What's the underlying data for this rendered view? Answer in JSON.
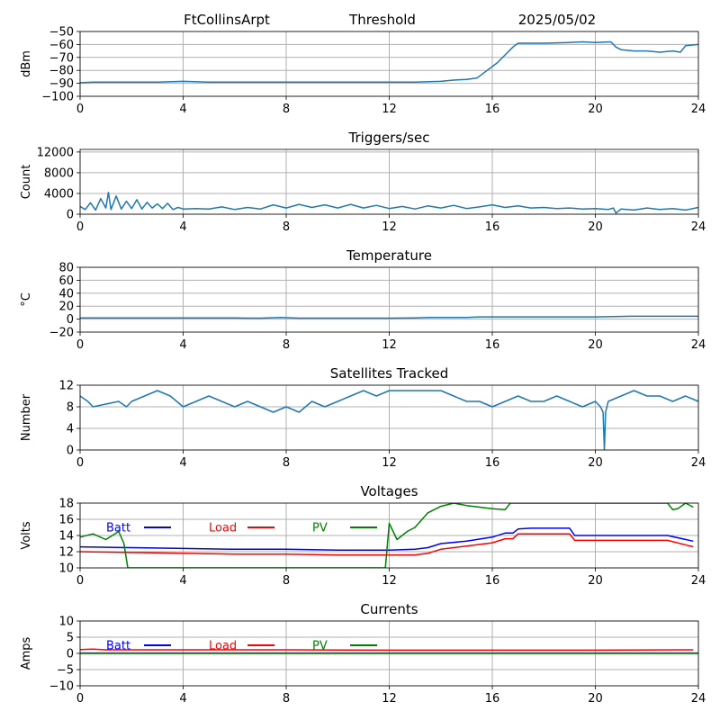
{
  "header": {
    "station": "FtCollinsArpt",
    "threshold": "Threshold",
    "date": "2025/05/02"
  },
  "colors": {
    "series": "#1f77b4",
    "batt": "#0000ff",
    "load": "#ff0000",
    "pv": "#008000",
    "grid": "#b0b0b0"
  },
  "chart_data": [
    {
      "id": "threshold",
      "type": "line",
      "title": "",
      "ylabel": "dBm",
      "xlim": [
        0,
        24
      ],
      "ylim": [
        -100,
        -50
      ],
      "xticks": [
        0,
        4,
        8,
        12,
        16,
        20,
        24
      ],
      "xtick_labels": [
        "0",
        "4",
        "8",
        "12",
        "16",
        "20",
        "24"
      ],
      "yticks": [
        -100,
        -90,
        -80,
        -70,
        -60,
        -50
      ],
      "ytick_labels": [
        "−100",
        "−90",
        "−80",
        "−70",
        "−60",
        "−50"
      ],
      "grid": true,
      "series": [
        {
          "color": "#1f77b4",
          "x": [
            0,
            0.5,
            1,
            2,
            3,
            4,
            5,
            6,
            7,
            8,
            9,
            10,
            11,
            12,
            13,
            14,
            14.5,
            15,
            15.4,
            15.8,
            16.2,
            16.6,
            16.8,
            17,
            17.5,
            18,
            19,
            19.5,
            20,
            20.6,
            20.8,
            21,
            21.5,
            22,
            22.5,
            23,
            23.3,
            23.5,
            24
          ],
          "y": [
            -89.5,
            -89,
            -89,
            -89,
            -89,
            -88.5,
            -89,
            -89,
            -89,
            -89,
            -89,
            -89,
            -89,
            -89,
            -89,
            -88.5,
            -87.5,
            -87,
            -86,
            -80,
            -74,
            -66,
            -62,
            -59,
            -59,
            -59,
            -58.5,
            -58,
            -58.5,
            -58,
            -62,
            -64,
            -65,
            -65,
            -66,
            -65,
            -66,
            -61,
            -60
          ]
        }
      ]
    },
    {
      "id": "triggers",
      "type": "line",
      "title": "Triggers/sec",
      "ylabel": "Count",
      "xlim": [
        0,
        24
      ],
      "ylim": [
        0,
        12500
      ],
      "xticks": [
        0,
        4,
        8,
        12,
        16,
        20,
        24
      ],
      "xtick_labels": [
        "0",
        "4",
        "8",
        "12",
        "16",
        "20",
        "24"
      ],
      "yticks": [
        0,
        4000,
        8000,
        12000
      ],
      "ytick_labels": [
        "0",
        "4000",
        "8000",
        "12000"
      ],
      "grid": true,
      "series": [
        {
          "color": "#1f77b4",
          "x": [
            0,
            0.2,
            0.4,
            0.6,
            0.8,
            1.0,
            1.1,
            1.2,
            1.4,
            1.6,
            1.8,
            2.0,
            2.2,
            2.4,
            2.6,
            2.8,
            3.0,
            3.2,
            3.4,
            3.6,
            3.8,
            4.0,
            4.5,
            5.0,
            5.5,
            6.0,
            6.5,
            7.0,
            7.5,
            8.0,
            8.5,
            9.0,
            9.5,
            10.0,
            10.5,
            11.0,
            11.5,
            12.0,
            12.5,
            13.0,
            13.5,
            14.0,
            14.5,
            15.0,
            15.5,
            16.0,
            16.5,
            17.0,
            17.5,
            18.0,
            18.5,
            19.0,
            19.5,
            20.0,
            20.5,
            20.7,
            20.8,
            21.0,
            21.5,
            22.0,
            22.5,
            23.0,
            23.5,
            24.0
          ],
          "y": [
            1500,
            900,
            2200,
            800,
            3000,
            1200,
            4200,
            900,
            3500,
            1000,
            2500,
            1100,
            2800,
            1000,
            2300,
            1200,
            2000,
            1100,
            2100,
            900,
            1300,
            1000,
            1100,
            1000,
            1400,
            900,
            1300,
            1000,
            1800,
            1200,
            1900,
            1300,
            1800,
            1200,
            1900,
            1200,
            1700,
            1100,
            1500,
            1000,
            1600,
            1200,
            1700,
            1100,
            1400,
            1800,
            1300,
            1600,
            1200,
            1300,
            1100,
            1200,
            1000,
            1100,
            900,
            1200,
            200,
            1000,
            800,
            1200,
            900,
            1100,
            800,
            1300
          ]
        }
      ]
    },
    {
      "id": "temperature",
      "type": "line",
      "title": "Temperature",
      "ylabel": "°C",
      "xlim": [
        0,
        24
      ],
      "ylim": [
        -20,
        80
      ],
      "xticks": [
        0,
        4,
        8,
        12,
        16,
        20,
        24
      ],
      "xtick_labels": [
        "0",
        "4",
        "8",
        "12",
        "16",
        "20",
        "24"
      ],
      "yticks": [
        -20,
        0,
        20,
        40,
        60,
        80
      ],
      "ytick_labels": [
        "−20",
        "0",
        "20",
        "40",
        "60",
        "80"
      ],
      "grid": true,
      "series": [
        {
          "color": "#1f77b4",
          "x": [
            0,
            2,
            4,
            6,
            6.5,
            7,
            7.8,
            8.5,
            10,
            12,
            13,
            13.5,
            15,
            15.5,
            18,
            20,
            21.4,
            22,
            24
          ],
          "y": [
            2,
            2,
            2,
            2,
            1.5,
            1.5,
            2.5,
            1.5,
            1.5,
            1.5,
            2,
            2.5,
            2.5,
            3.5,
            3.5,
            3.5,
            4.5,
            4.5,
            4.5
          ]
        }
      ]
    },
    {
      "id": "satellites",
      "type": "line",
      "title": "Satellites Tracked",
      "ylabel": "Number",
      "xlim": [
        0,
        24
      ],
      "ylim": [
        0,
        12
      ],
      "xticks": [
        0,
        4,
        8,
        12,
        16,
        20,
        24
      ],
      "xtick_labels": [
        "0",
        "4",
        "8",
        "12",
        "16",
        "20",
        "24"
      ],
      "yticks": [
        0,
        4,
        8,
        12
      ],
      "ytick_labels": [
        "0",
        "4",
        "8",
        "12"
      ],
      "grid": true,
      "series": [
        {
          "color": "#1f77b4",
          "x": [
            0,
            0.3,
            0.5,
            1.5,
            1.8,
            2.0,
            2.5,
            3.0,
            3.5,
            4.0,
            4.5,
            5.0,
            5.5,
            6.0,
            6.5,
            7.0,
            7.5,
            8.0,
            8.5,
            9.0,
            9.5,
            10.0,
            10.5,
            11.0,
            11.5,
            12.0,
            12.5,
            13.0,
            13.5,
            14.0,
            14.5,
            15.0,
            15.5,
            16.0,
            16.5,
            17.0,
            17.5,
            18.0,
            18.5,
            19.0,
            19.5,
            20.0,
            20.2,
            20.3,
            20.35,
            20.4,
            20.5,
            21.0,
            21.5,
            22.0,
            22.5,
            23.0,
            23.5,
            24.0
          ],
          "y": [
            10,
            9,
            8,
            9,
            8,
            9,
            10,
            11,
            10,
            8,
            9,
            10,
            9,
            8,
            9,
            8,
            7,
            8,
            7,
            9,
            8,
            9,
            10,
            11,
            10,
            11,
            11,
            11,
            11,
            11,
            10,
            9,
            9,
            8,
            9,
            10,
            9,
            9,
            10,
            9,
            8,
            9,
            8,
            7,
            0,
            7,
            9,
            10,
            11,
            10,
            10,
            9,
            10,
            9
          ]
        }
      ]
    },
    {
      "id": "voltages",
      "type": "line",
      "title": "Voltages",
      "ylabel": "Volts",
      "xlim": [
        0,
        24
      ],
      "ylim": [
        10,
        18
      ],
      "xticks": [
        0,
        4,
        8,
        12,
        16,
        20,
        24
      ],
      "xtick_labels": [
        "0",
        "4",
        "8",
        "12",
        "16",
        "20",
        "24"
      ],
      "yticks": [
        10,
        12,
        14,
        16,
        18
      ],
      "ytick_labels": [
        "10",
        "12",
        "14",
        "16",
        "18"
      ],
      "grid": true,
      "legend": "top-left",
      "series": [
        {
          "name": "Batt",
          "color": "#0000ff",
          "x": [
            0,
            2,
            4,
            6,
            8,
            10,
            12,
            13,
            13.5,
            14,
            15,
            16,
            16.5,
            16.8,
            17,
            17.5,
            18,
            19,
            19.2,
            20,
            22,
            22.8,
            23.8
          ],
          "y": [
            12.6,
            12.5,
            12.4,
            12.3,
            12.3,
            12.2,
            12.2,
            12.3,
            12.5,
            13.0,
            13.3,
            13.8,
            14.3,
            14.3,
            14.8,
            14.9,
            14.9,
            14.9,
            14.0,
            14.0,
            14.0,
            14.0,
            13.3
          ]
        },
        {
          "name": "Load",
          "color": "#ff0000",
          "x": [
            0,
            2,
            4,
            6,
            8,
            10,
            12,
            13,
            13.5,
            14,
            15,
            16,
            16.5,
            16.8,
            17,
            17.5,
            18,
            19,
            19.2,
            20,
            22,
            22.8,
            23.8
          ],
          "y": [
            12.0,
            11.9,
            11.8,
            11.7,
            11.7,
            11.6,
            11.6,
            11.6,
            11.8,
            12.3,
            12.7,
            13.1,
            13.6,
            13.6,
            14.2,
            14.2,
            14.2,
            14.2,
            13.4,
            13.4,
            13.4,
            13.4,
            12.6
          ]
        },
        {
          "name": "PV",
          "color": "#008000",
          "x": [
            0,
            0.5,
            1,
            1.5,
            1.7,
            1.85,
            11.85,
            12.0,
            12.3,
            12.7,
            13.0,
            13.5,
            14.0,
            14.5,
            15.0,
            15.5,
            16.0,
            16.5,
            16.7,
            22.8,
            23.0,
            23.2,
            23.5,
            23.8
          ],
          "y": [
            13.8,
            14.2,
            13.5,
            14.5,
            13.0,
            10.0,
            10.0,
            15.5,
            13.5,
            14.5,
            15.0,
            16.8,
            17.6,
            18.0,
            17.7,
            17.5,
            17.3,
            17.2,
            18.0,
            18.0,
            17.2,
            17.3,
            18.0,
            17.5
          ]
        }
      ]
    },
    {
      "id": "currents",
      "type": "line",
      "title": "Currents",
      "ylabel": "Amps",
      "xlim": [
        0,
        24
      ],
      "ylim": [
        -10,
        10
      ],
      "xticks": [
        0,
        4,
        8,
        12,
        16,
        20,
        24
      ],
      "xtick_labels": [
        "0",
        "4",
        "8",
        "12",
        "16",
        "20",
        "24"
      ],
      "yticks": [
        -10,
        -5,
        0,
        5,
        10
      ],
      "ytick_labels": [
        "−10",
        "−5",
        "0",
        "5",
        "10"
      ],
      "grid": true,
      "legend": "top-left",
      "series": [
        {
          "name": "Batt",
          "color": "#0000ff",
          "x": [
            0,
            24
          ],
          "y": [
            0.1,
            0.1
          ]
        },
        {
          "name": "Load",
          "color": "#ff0000",
          "x": [
            0,
            0.5,
            1,
            4,
            8,
            12,
            16,
            20,
            23.8
          ],
          "y": [
            1.2,
            1.3,
            1.1,
            1.1,
            1.1,
            1.0,
            1.0,
            1.0,
            1.1
          ]
        },
        {
          "name": "PV",
          "color": "#008000",
          "x": [
            0,
            24
          ],
          "y": [
            0.0,
            0.0
          ]
        }
      ]
    }
  ]
}
